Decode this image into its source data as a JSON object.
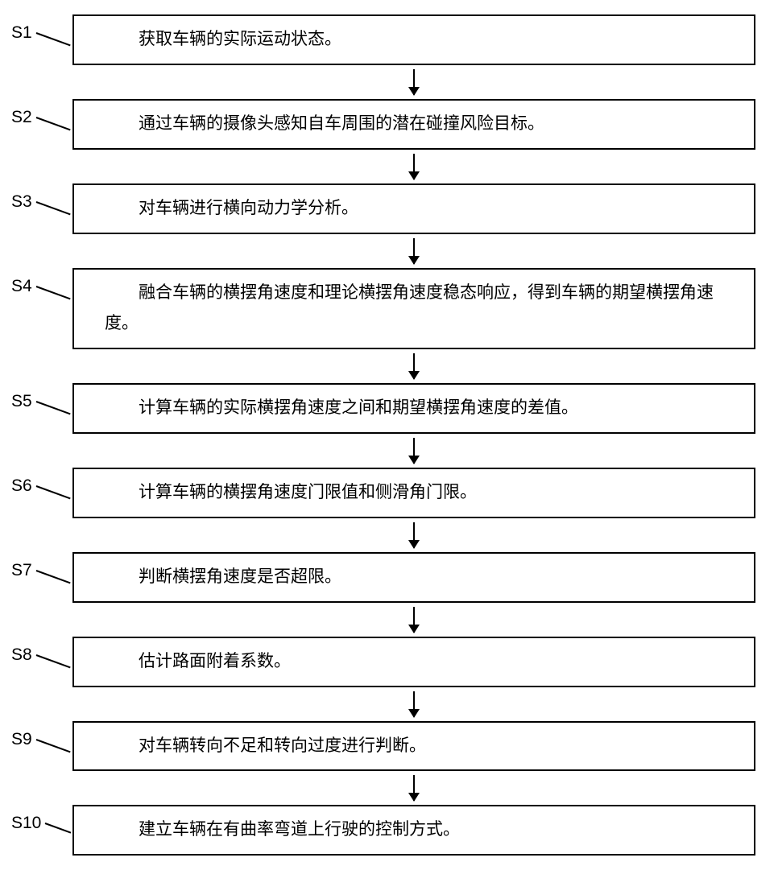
{
  "flowchart": {
    "type": "flowchart",
    "background_color": "#ffffff",
    "border_color": "#000000",
    "border_width": 2,
    "text_color": "#000000",
    "font_size": 21,
    "arrow_color": "#000000",
    "steps": [
      {
        "label": "S1",
        "text": "获取车辆的实际运动状态。"
      },
      {
        "label": "S2",
        "text": "通过车辆的摄像头感知自车周围的潜在碰撞风险目标。"
      },
      {
        "label": "S3",
        "text": "对车辆进行横向动力学分析。"
      },
      {
        "label": "S4",
        "text": "融合车辆的横摆角速度和理论横摆角速度稳态响应，得到车辆的期望横摆角速度。"
      },
      {
        "label": "S5",
        "text": "计算车辆的实际横摆角速度之间和期望横摆角速度的差值。"
      },
      {
        "label": "S6",
        "text": "计算车辆的横摆角速度门限值和侧滑角门限。"
      },
      {
        "label": "S7",
        "text": "判断横摆角速度是否超限。"
      },
      {
        "label": "S8",
        "text": "估计路面附着系数。"
      },
      {
        "label": "S9",
        "text": "对车辆转向不足和转向过度进行判断。"
      },
      {
        "label": "S10",
        "text": "建立车辆在有曲率弯道上行驶的控制方式。"
      }
    ]
  }
}
